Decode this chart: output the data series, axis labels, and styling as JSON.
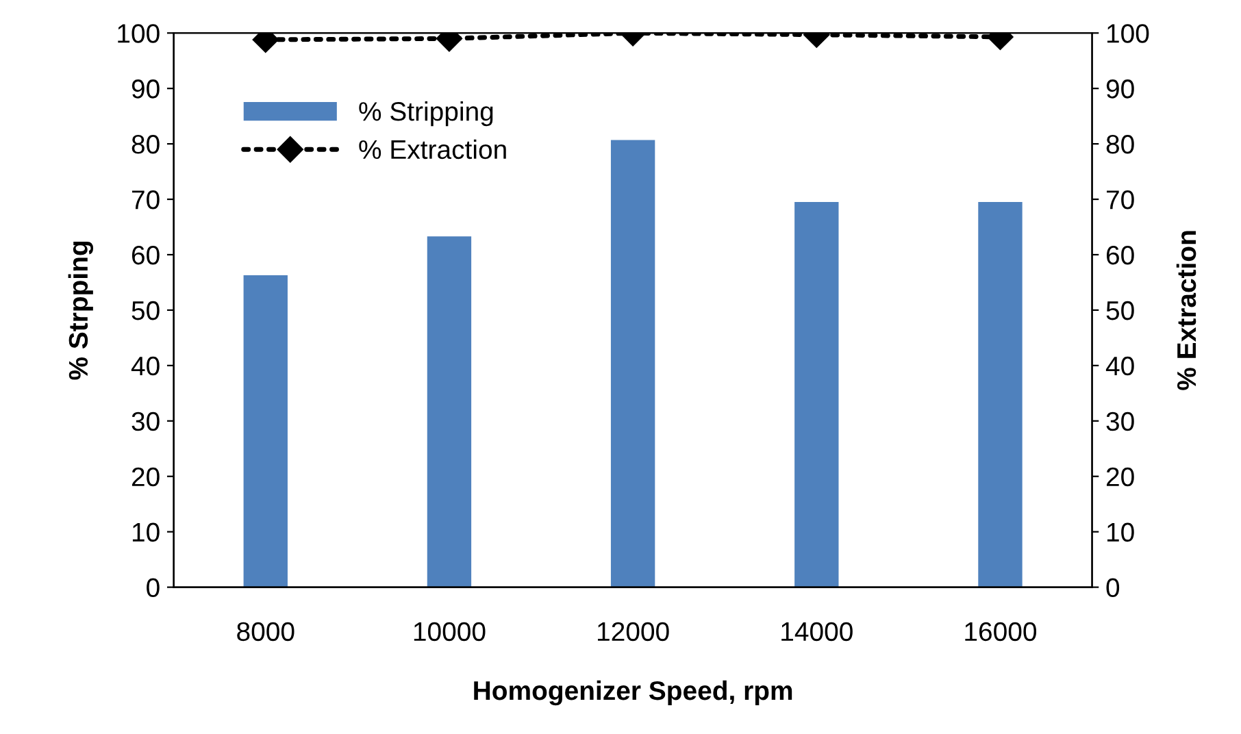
{
  "chart_data": {
    "type": "bar",
    "xlabel": "Homogenizer Speed, rpm",
    "ylabel": "% Strpping",
    "y2label": "% Extraction",
    "categories": [
      "8000",
      "10000",
      "12000",
      "14000",
      "16000"
    ],
    "series": [
      {
        "name": "% Stripping",
        "color": "#4f81bd",
        "values": [
          56.3,
          63.3,
          80.7,
          69.5,
          69.5
        ]
      },
      {
        "name": "% Extraction",
        "type": "line",
        "axis": "y2",
        "color": "#000000",
        "marker": "diamond",
        "line_style": "dotted",
        "values": [
          98.8,
          99.0,
          100,
          99.7,
          99.3
        ]
      }
    ],
    "ylim": [
      0,
      100
    ],
    "yticks": [
      0,
      10,
      20,
      30,
      40,
      50,
      60,
      70,
      80,
      90,
      100
    ],
    "y2lim": [
      0,
      100
    ],
    "y2ticks": [
      0,
      10,
      20,
      30,
      40,
      50,
      60,
      70,
      80,
      90,
      100
    ],
    "grid": false,
    "legend": "top left"
  }
}
